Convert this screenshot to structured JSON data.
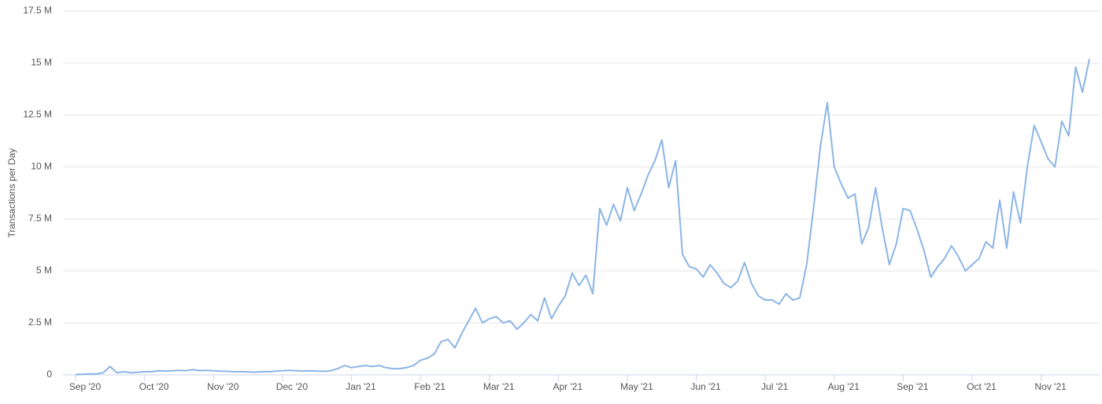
{
  "chart_data": {
    "type": "line",
    "y_label": "Transactions per Day",
    "categories": [
      "Sep '20",
      null,
      null,
      null,
      null,
      null,
      null,
      null,
      null,
      null,
      "Oct '20",
      null,
      null,
      null,
      null,
      null,
      null,
      null,
      null,
      null,
      "Nov '20",
      null,
      null,
      null,
      null,
      null,
      null,
      null,
      null,
      null,
      "Dec '20",
      null,
      null,
      null,
      null,
      null,
      null,
      null,
      null,
      null,
      "Jan '21",
      null,
      null,
      null,
      null,
      null,
      null,
      null,
      null,
      null,
      "Feb '21",
      null,
      null,
      null,
      null,
      null,
      null,
      null,
      null,
      null,
      "Mar '21",
      null,
      null,
      null,
      null,
      null,
      null,
      null,
      null,
      null,
      "Apr '21",
      null,
      null,
      null,
      null,
      null,
      null,
      null,
      null,
      null,
      "May '21",
      null,
      null,
      null,
      null,
      null,
      null,
      null,
      null,
      null,
      "Jun '21",
      null,
      null,
      null,
      null,
      null,
      null,
      null,
      null,
      null,
      "Jul '21",
      null,
      null,
      null,
      null,
      null,
      null,
      null,
      null,
      null,
      "Aug '21",
      null,
      null,
      null,
      null,
      null,
      null,
      null,
      null,
      null,
      "Sep '21",
      null,
      null,
      null,
      null,
      null,
      null,
      null,
      null,
      null,
      "Oct '21",
      null,
      null,
      null,
      null,
      null,
      null,
      null,
      null,
      null,
      "Nov '21",
      null,
      null,
      null,
      null,
      null,
      null,
      null
    ],
    "series": [
      {
        "name": "Transactions per Day",
        "color": "#8cb5e6",
        "values": [
          0.02,
          0.03,
          0.04,
          0.05,
          0.1,
          0.4,
          0.1,
          0.15,
          0.1,
          0.12,
          0.15,
          0.15,
          0.2,
          0.18,
          0.2,
          0.22,
          0.2,
          0.25,
          0.2,
          0.22,
          0.2,
          0.18,
          0.17,
          0.15,
          0.15,
          0.14,
          0.13,
          0.15,
          0.15,
          0.18,
          0.2,
          0.22,
          0.2,
          0.18,
          0.2,
          0.18,
          0.17,
          0.2,
          0.3,
          0.45,
          0.35,
          0.4,
          0.45,
          0.4,
          0.45,
          0.35,
          0.3,
          0.3,
          0.35,
          0.45,
          0.7,
          0.8,
          1.0,
          1.6,
          1.7,
          1.3,
          2.0,
          2.6,
          3.2,
          2.5,
          2.7,
          2.8,
          2.5,
          2.6,
          2.2,
          2.5,
          2.9,
          2.6,
          3.7,
          2.7,
          3.3,
          3.8,
          4.9,
          4.3,
          4.8,
          3.9,
          8.0,
          7.2,
          8.2,
          7.4,
          9.0,
          7.9,
          8.7,
          9.6,
          10.3,
          11.3,
          9.0,
          10.3,
          5.8,
          5.2,
          5.1,
          4.7,
          5.3,
          4.9,
          4.4,
          4.2,
          4.5,
          5.4,
          4.4,
          3.8,
          3.6,
          3.6,
          3.4,
          3.9,
          3.6,
          3.7,
          5.3,
          8.0,
          11.0,
          13.1,
          10.0,
          9.2,
          8.5,
          8.7,
          6.3,
          7.1,
          9.0,
          7.0,
          5.3,
          6.3,
          8.0,
          7.9,
          7.0,
          6.0,
          4.7,
          5.2,
          5.6,
          6.2,
          5.7,
          5.0,
          5.3,
          5.6,
          6.4,
          6.1,
          8.4,
          6.1,
          8.8,
          7.3,
          10.0,
          12.0,
          11.2,
          10.4,
          10.0,
          12.2,
          11.5,
          14.8,
          13.6,
          15.2
        ]
      }
    ],
    "ylim": [
      0,
      17.5
    ],
    "yticks": [
      0,
      {
        "value": 2.5,
        "label": "2.5 M"
      },
      {
        "value": 5,
        "label": "5 M"
      },
      {
        "value": 7.5,
        "label": "7.5 M"
      },
      {
        "value": 10,
        "label": "10 M"
      },
      {
        "value": 12.5,
        "label": "12.5 M"
      },
      {
        "value": 15,
        "label": "15 M"
      },
      {
        "value": 17.5,
        "label": "17.5 M"
      }
    ],
    "grid": true
  }
}
